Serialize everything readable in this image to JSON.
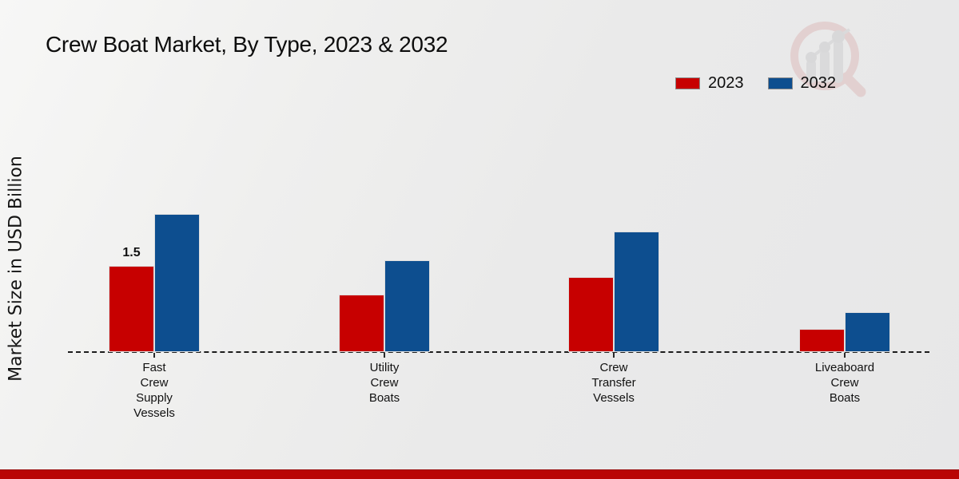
{
  "title": "Crew Boat Market, By Type, 2023 & 2032",
  "ylabel": "Market Size in USD Billion",
  "legend": [
    {
      "label": "2023",
      "color": "#c70000"
    },
    {
      "label": "2032",
      "color": "#0d4e8f"
    }
  ],
  "branding": {
    "logo_icon": "magnifier-bar-chart-logo",
    "footer_band_color": "#b90505"
  },
  "chart_data": {
    "type": "bar",
    "categories": [
      "Fast Crew Supply Vessels",
      "Utility Crew Boats",
      "Crew Transfer Vessels",
      "Liveaboard Crew Boats"
    ],
    "series": [
      {
        "name": "2023",
        "color": "#c70000",
        "values": [
          1.5,
          1.0,
          1.3,
          0.4
        ]
      },
      {
        "name": "2032",
        "color": "#0d4e8f",
        "values": [
          2.4,
          1.6,
          2.1,
          0.7
        ]
      }
    ],
    "title": "Crew Boat Market, By Type, 2023 & 2032",
    "xlabel": "",
    "ylabel": "Market Size in USD Billion",
    "ylim": [
      0,
      3
    ],
    "grid": false,
    "baseline_style": "dashed",
    "legend_position": "top-right",
    "annotations": [
      {
        "series": "2023",
        "category_index": 0,
        "text": "1.5"
      }
    ]
  }
}
